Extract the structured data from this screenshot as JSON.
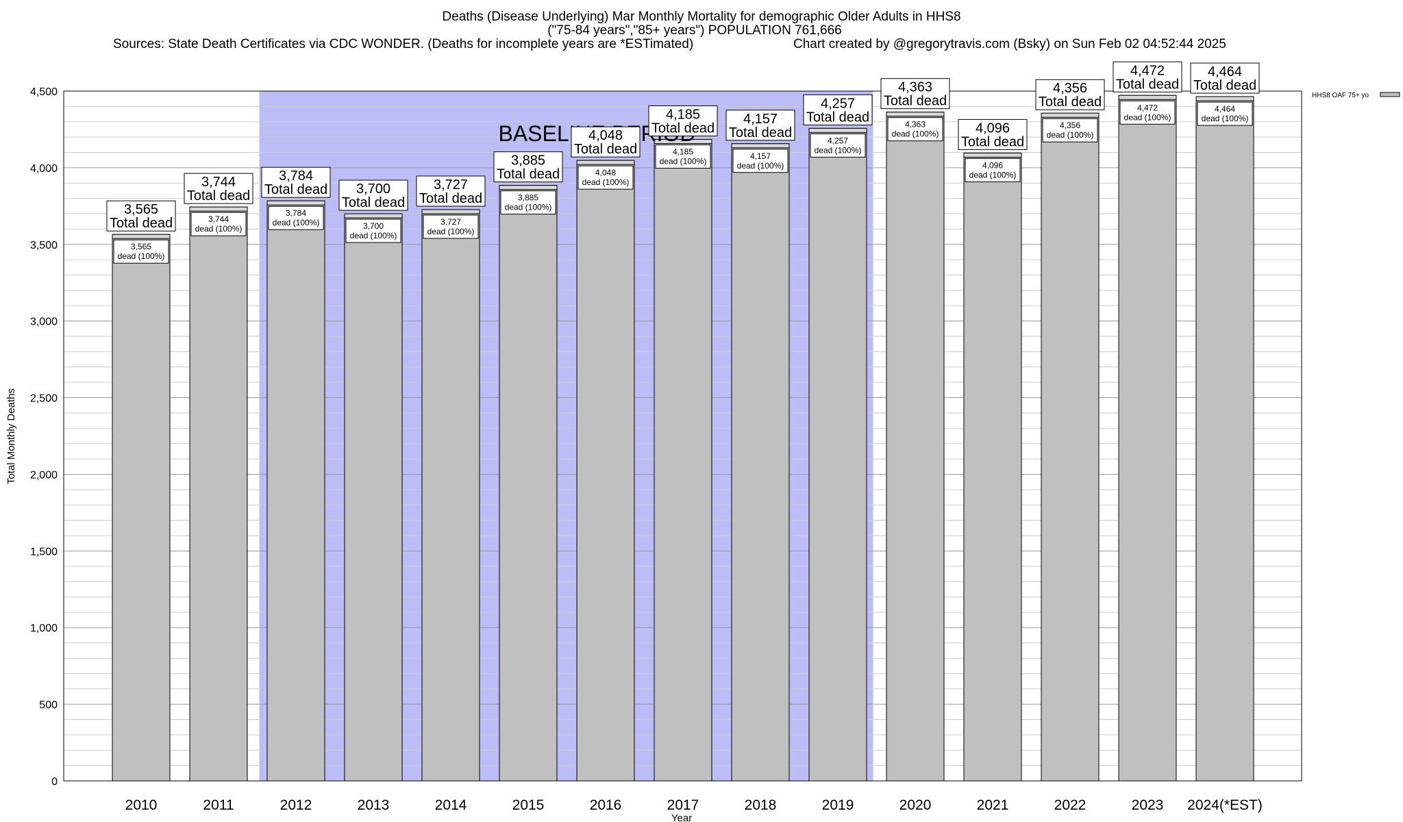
{
  "header": {
    "title": "Deaths (Disease Underlying) Mar Monthly Mortality for demographic Older Adults in HHS8",
    "subtitle": "(\"75-84 years\",\"85+ years\") POPULATION 761,666",
    "sources": "Sources: State Death Certificates via CDC WONDER. (Deaths for incomplete years are *ESTimated)",
    "credit": "Chart created by @gregorytravis.com (Bsky) on Sun Feb 02 04:52:44 2025"
  },
  "chart_data": {
    "type": "bar",
    "categories": [
      "2010",
      "2011",
      "2012",
      "2013",
      "2014",
      "2015",
      "2016",
      "2017",
      "2018",
      "2019",
      "2020",
      "2021",
      "2022",
      "2023",
      "2024(*EST)"
    ],
    "series": [
      {
        "name": "HHS8 OAF 75+ yo",
        "values": [
          3565,
          3744,
          3784,
          3700,
          3727,
          3885,
          4048,
          4185,
          4157,
          4257,
          4363,
          4096,
          4356,
          4472,
          4464
        ]
      }
    ],
    "value_labels": [
      "3,565",
      "3,744",
      "3,784",
      "3,700",
      "3,727",
      "3,885",
      "4,048",
      "4,185",
      "4,157",
      "4,257",
      "4,363",
      "4,096",
      "4,356",
      "4,472",
      "4,464"
    ],
    "top_label_suffix": "Total dead",
    "inner_label_suffix": "dead (100%)",
    "xlabel": "Year",
    "ylabel": "Total Monthly Deaths",
    "ylim": [
      0,
      4500
    ],
    "yticks": [
      0,
      500,
      1000,
      1500,
      2000,
      2500,
      3000,
      3500,
      4000,
      4500
    ],
    "ytick_labels": [
      "0",
      "500",
      "1,000",
      "1,500",
      "2,000",
      "2,500",
      "3,000",
      "3,500",
      "4,000",
      "4,500"
    ],
    "minor_grid_step": 100,
    "grid": true,
    "legend_position": "top-right",
    "baseline_period": {
      "label": "BASELINE PERIOD",
      "start": "2012",
      "end": "2019",
      "color": "#bcbcf6"
    },
    "colors": {
      "bar_fill": "#c0c0c0",
      "bar_stroke": "#000000",
      "grid_major": "#999999",
      "grid_minor": "#cccccc"
    }
  }
}
